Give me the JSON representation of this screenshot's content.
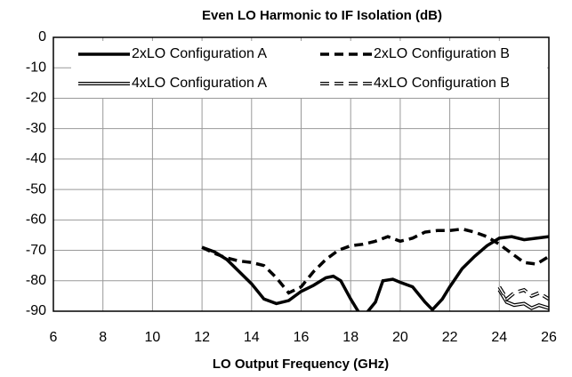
{
  "chart_data": {
    "type": "line",
    "title": "Even LO Harmonic to IF Isolation (dB)",
    "x_label": "LO Output Frequency (GHz)",
    "xlim": [
      6,
      26
    ],
    "xticks": [
      6,
      8,
      10,
      12,
      14,
      16,
      18,
      20,
      22,
      24,
      26
    ],
    "ylim": [
      -90,
      0
    ],
    "yticks": [
      0,
      -10,
      -20,
      -30,
      -40,
      -50,
      -60,
      -70,
      -80,
      -90
    ],
    "grid": true,
    "legend": "top",
    "series": [
      {
        "name": "2xLO Configuration A",
        "color": "#000000",
        "dashed": false,
        "double": false,
        "x": [
          12,
          12.5,
          13,
          13.5,
          14,
          14.5,
          15,
          15.5,
          16,
          16.5,
          17,
          17.3,
          17.6,
          18,
          18.3,
          18.5,
          18.7,
          19,
          19.3,
          19.7,
          20,
          20.5,
          21,
          21.3,
          21.7,
          22,
          22.5,
          23,
          23.5,
          24,
          24.5,
          25,
          25.5,
          26
        ],
        "values": [
          -69,
          -70.5,
          -73,
          -77,
          -81,
          -86,
          -87.5,
          -86.5,
          -83.5,
          -81.5,
          -79,
          -78.5,
          -80,
          -86,
          -90,
          -93,
          -90,
          -87,
          -80,
          -79.5,
          -80.5,
          -82,
          -87,
          -89.5,
          -86,
          -82,
          -76,
          -72,
          -68.5,
          -66,
          -65.5,
          -66.5,
          -66,
          -65.5
        ]
      },
      {
        "name": "2xLO Configuration B",
        "color": "#000000",
        "dashed": true,
        "double": false,
        "x": [
          12,
          12.5,
          13,
          13.5,
          14,
          14.5,
          15,
          15.5,
          16,
          16.5,
          17,
          17.5,
          18,
          18.5,
          19,
          19.5,
          20,
          20.5,
          21,
          21.5,
          22,
          22.5,
          23,
          23.5,
          24,
          24.5,
          25,
          25.5,
          26
        ],
        "values": [
          -69,
          -71,
          -72.5,
          -73.5,
          -74,
          -75,
          -79,
          -84,
          -82,
          -77,
          -73,
          -70,
          -68.5,
          -68,
          -67,
          -65.5,
          -67,
          -66,
          -64,
          -63.5,
          -63.5,
          -63,
          -64,
          -65.5,
          -68,
          -71,
          -74,
          -74.5,
          -72
        ]
      },
      {
        "name": "4xLO Configuration A",
        "color": "#000000",
        "dashed": false,
        "double": true,
        "x": [
          24,
          24.3,
          24.6,
          25,
          25.3,
          25.6,
          26
        ],
        "values": [
          -83,
          -87,
          -88,
          -87.5,
          -89,
          -88,
          -89
        ]
      },
      {
        "name": "4xLO Configuration B",
        "color": "#000000",
        "dashed": true,
        "double": true,
        "x": [
          24,
          24.3,
          24.6,
          25,
          25.3,
          25.6,
          26
        ],
        "values": [
          -82,
          -86,
          -84,
          -83,
          -85,
          -84,
          -86
        ]
      }
    ]
  }
}
